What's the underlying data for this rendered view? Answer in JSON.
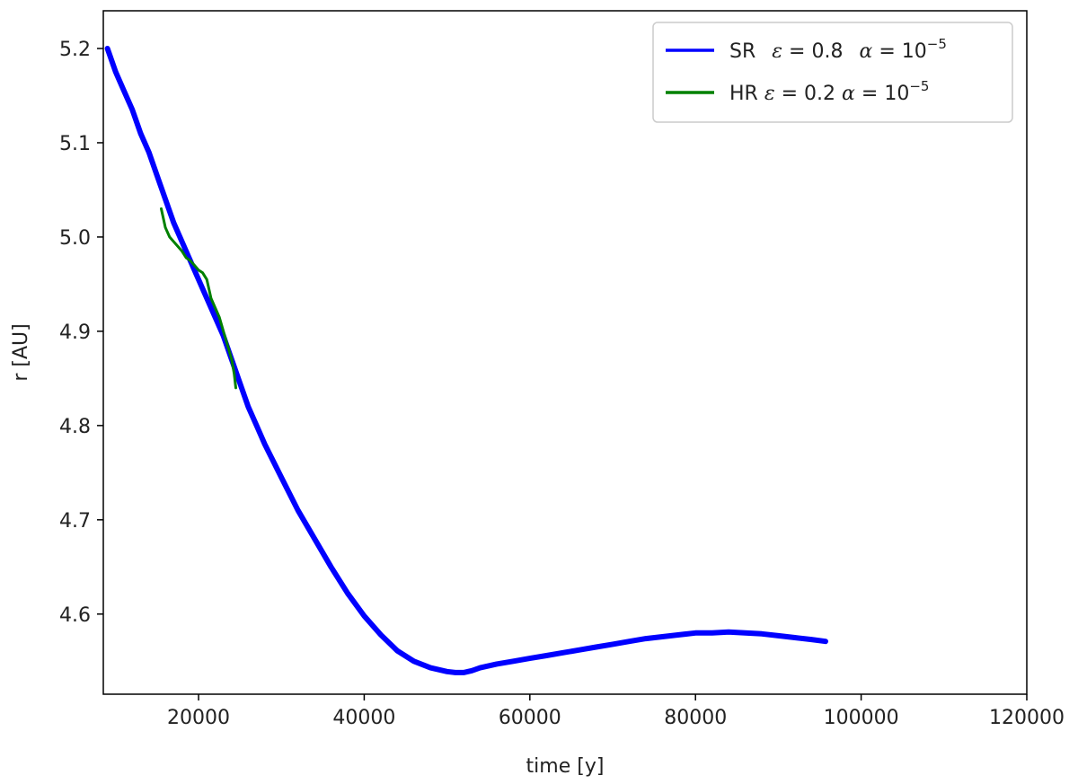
{
  "chart_data": {
    "type": "line",
    "title": "",
    "xlabel": "time [y]",
    "ylabel": "r [AU]",
    "xlim": [
      8500,
      120000
    ],
    "ylim": [
      4.515,
      5.24
    ],
    "x_ticks": [
      20000,
      40000,
      60000,
      80000,
      100000,
      120000
    ],
    "y_ticks": [
      4.6,
      4.7,
      4.8,
      4.9,
      5.0,
      5.1,
      5.2
    ],
    "y_tick_labels": [
      "4.6",
      "4.7",
      "4.8",
      "4.9",
      "5.0",
      "5.1",
      "5.2"
    ],
    "grid": false,
    "legend_position": "top-right",
    "series": [
      {
        "name": "SR  ε = 0.8  α = 10⁻⁵",
        "legend": {
          "prefix": "SR",
          "eps": "0.8",
          "alpha_exp": "−5"
        },
        "color": "#0000ff",
        "x": [
          9000,
          10000,
          11000,
          12000,
          13000,
          14000,
          15000,
          16000,
          17000,
          18000,
          19000,
          20000,
          21000,
          22000,
          23000,
          24000,
          25000,
          26000,
          27000,
          28000,
          30000,
          32000,
          34000,
          36000,
          38000,
          40000,
          42000,
          44000,
          46000,
          48000,
          50000,
          51000,
          52000,
          53000,
          54000,
          56000,
          58000,
          60000,
          62000,
          64000,
          66000,
          68000,
          70000,
          72000,
          74000,
          76000,
          78000,
          80000,
          82000,
          84000,
          86000,
          88000,
          90000,
          92000,
          94000,
          95700
        ],
        "y": [
          5.2,
          5.175,
          5.155,
          5.135,
          5.11,
          5.09,
          5.065,
          5.04,
          5.015,
          4.995,
          4.975,
          4.955,
          4.935,
          4.915,
          4.895,
          4.87,
          4.845,
          4.82,
          4.8,
          4.78,
          4.745,
          4.71,
          4.68,
          4.65,
          4.622,
          4.598,
          4.578,
          4.561,
          4.55,
          4.543,
          4.539,
          4.538,
          4.538,
          4.54,
          4.543,
          4.547,
          4.55,
          4.553,
          4.556,
          4.559,
          4.562,
          4.565,
          4.568,
          4.571,
          4.574,
          4.576,
          4.578,
          4.58,
          4.58,
          4.581,
          4.58,
          4.579,
          4.577,
          4.575,
          4.573,
          4.571
        ],
        "stroke_width": 6
      },
      {
        "name": "HR ε = 0.2 α = 10⁻⁵",
        "legend": {
          "prefix": "HR",
          "eps": "0.2",
          "alpha_exp": "−5"
        },
        "color": "#008000",
        "x": [
          15500,
          16000,
          16500,
          17000,
          17500,
          18000,
          18500,
          19000,
          19500,
          20000,
          20500,
          21000,
          21500,
          22000,
          22500,
          23000,
          23500,
          24000,
          24300,
          24500
        ],
        "y": [
          5.03,
          5.01,
          5.0,
          4.995,
          4.99,
          4.985,
          4.978,
          4.975,
          4.97,
          4.965,
          4.962,
          4.955,
          4.935,
          4.925,
          4.915,
          4.9,
          4.885,
          4.87,
          4.855,
          4.84
        ],
        "stroke_width": 3
      }
    ]
  }
}
